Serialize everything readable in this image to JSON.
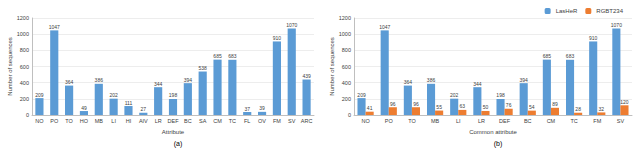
{
  "chart_data": [
    {
      "type": "bar",
      "title": "(a)",
      "x_label": "Attribute",
      "y_label": "Number of sequences",
      "categories": [
        "NO",
        "PO",
        "TO",
        "HO",
        "MB",
        "LI",
        "HI",
        "AIV",
        "LR",
        "DEF",
        "BC",
        "SA",
        "CM",
        "TC",
        "FL",
        "OV",
        "FM",
        "SV",
        "ARC"
      ],
      "values": [
        209,
        1047,
        364,
        49,
        386,
        202,
        111,
        27,
        344,
        198,
        394,
        538,
        685,
        683,
        37,
        39,
        910,
        1070,
        439
      ],
      "color": "#5b9bd5",
      "ylim": [
        0,
        1200
      ],
      "yticks": [
        0,
        200,
        400,
        600,
        800,
        1000,
        1200
      ],
      "grid": true,
      "data_labels": true
    },
    {
      "type": "bar",
      "title": "(b)",
      "x_label": "Common attribute",
      "y_label": "Number of sequences",
      "categories": [
        "NO",
        "PO",
        "TO",
        "MB",
        "LI",
        "LR",
        "DEF",
        "BC",
        "CM",
        "TC",
        "FM",
        "SV"
      ],
      "series": [
        {
          "name": "LasHeR",
          "color": "#5b9bd5",
          "values": [
            209,
            1047,
            364,
            386,
            202,
            344,
            198,
            394,
            685,
            683,
            910,
            1070
          ]
        },
        {
          "name": "RGBT234",
          "color": "#ed7d31",
          "values": [
            41,
            96,
            96,
            55,
            63,
            50,
            76,
            54,
            89,
            28,
            32,
            120
          ]
        }
      ],
      "ylim": [
        0,
        1200
      ],
      "yticks": [
        0,
        200,
        400,
        600,
        800,
        1000,
        1200
      ],
      "grid": true,
      "legend": "top-right",
      "data_labels": true
    }
  ]
}
